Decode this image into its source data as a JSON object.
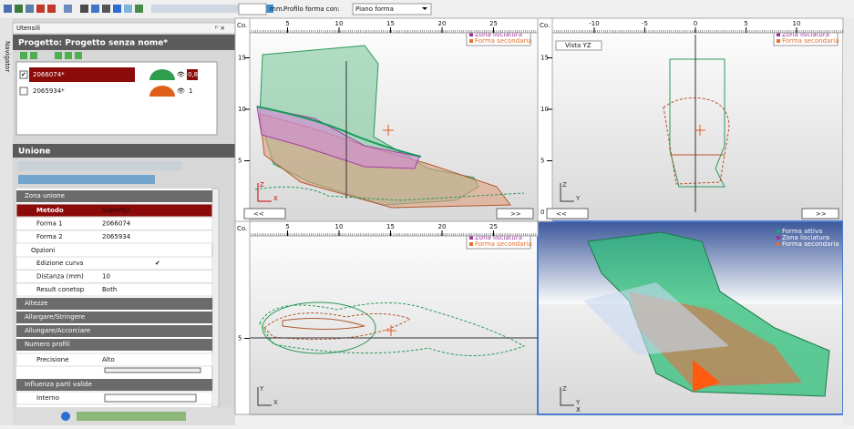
{
  "toolbar": {
    "unit": "mm.",
    "profile_label": "Profilo forma con:",
    "profile_value": "Piano forma"
  },
  "sidebar": {
    "navigator": "Navigator"
  },
  "tools_panel": {
    "title": "Utensili",
    "project": "Progetto: Progetto senza nome*",
    "shapes": [
      {
        "name": "2066074*",
        "value": "0,8"
      },
      {
        "name": "2065934*",
        "value": "1"
      }
    ]
  },
  "union_panel": {
    "title": "Unione",
    "section": "Zona unione",
    "rows": [
      {
        "label": "Metodo",
        "value": "Superfici"
      },
      {
        "label": "Forma 1",
        "value": "2066074"
      },
      {
        "label": "Forma 2",
        "value": "2065934"
      }
    ],
    "options": "Opzioni",
    "option_rows": [
      {
        "label": "Edizione curva"
      },
      {
        "label": "Distanza (mm)",
        "value": "10"
      },
      {
        "label": "Result conetop",
        "value": "Both"
      }
    ],
    "collapsed": [
      "Altezze",
      "Allargare/Stringere",
      "Allungare/Accorciare"
    ],
    "profiles": "Numero profili",
    "precision": {
      "label": "Precisione",
      "value": "Alto"
    },
    "influence": "Influenza parti valide",
    "inner": "Interno"
  },
  "legend": [
    "Forma attiva",
    "Zona lisciatura",
    "Forma secondaria"
  ],
  "viewports": [
    {
      "corner": "Co.",
      "ruler_x": [
        5,
        10,
        15,
        20,
        25
      ],
      "ruler_y": [
        15,
        10,
        5
      ],
      "prev": "<<",
      "next": ">>",
      "axis_v": "Z",
      "axis_h": "X"
    },
    {
      "corner": "Co.",
      "ruler_x": [
        -10,
        -5,
        0,
        5,
        10
      ],
      "ruler_y": [
        15,
        10,
        5,
        0
      ],
      "view": "Vista YZ",
      "prev": "<<",
      "next": ">>",
      "axis_v": "Z",
      "axis_h": "Y"
    },
    {
      "corner": "Co.",
      "ruler_x": [
        5,
        10,
        15,
        20,
        25
      ],
      "ruler_y": [
        5
      ],
      "axis_v": "Y",
      "axis_h": "X"
    },
    {
      "axis_v": "Z",
      "axis_h": "Y",
      "axis_d": "X"
    }
  ]
}
